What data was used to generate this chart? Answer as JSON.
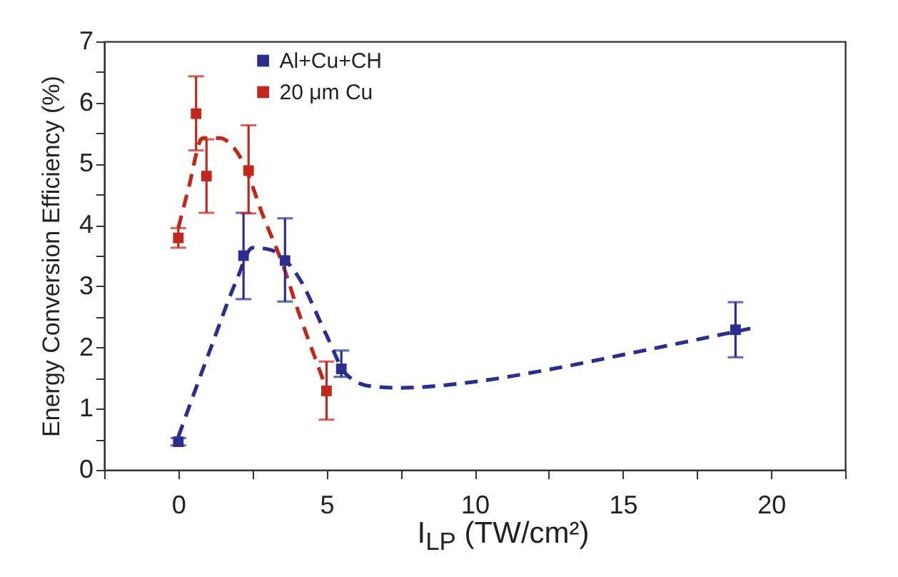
{
  "chart_data": {
    "type": "scatter",
    "xlabel": "I$_{LP}$ (TW/cm²)",
    "ylabel": "Energy Conversion Efficiency (%)",
    "xlim": [
      -2.5,
      22.5
    ],
    "xticks": [
      {
        "value": -2.5,
        "label": null
      },
      0,
      {
        "value": 2.5,
        "label": null
      },
      5,
      {
        "value": 7.5,
        "label": null
      },
      10,
      {
        "value": 12.5,
        "label": null
      },
      15,
      {
        "value": 17.5,
        "label": null
      },
      20,
      {
        "value": 22.5,
        "label": null
      }
    ],
    "ylim": [
      0,
      7
    ],
    "yticks": [
      0,
      {
        "value": 0.5,
        "label": null
      },
      1,
      {
        "value": 1.5,
        "label": null
      },
      2,
      {
        "value": 2.5,
        "label": null
      },
      3,
      {
        "value": 3.5,
        "label": null
      },
      4,
      {
        "value": 4.5,
        "label": null
      },
      5,
      {
        "value": 5.5,
        "label": null
      },
      6,
      {
        "value": 6.5,
        "label": null
      },
      7
    ],
    "grid": false,
    "legend": "top",
    "marker": "square",
    "series": [
      {
        "name": "Al+Cu+CH",
        "color": "#2b2e8f",
        "x": [
          0,
          2.2,
          3.6,
          5.5,
          18.8
        ],
        "values": [
          0.46,
          3.5,
          3.42,
          1.65,
          2.29
        ],
        "errors": [
          [
            0.4,
            0.52
          ],
          [
            2.79,
            4.2
          ],
          [
            2.75,
            4.11
          ],
          [
            1.52,
            1.95
          ],
          [
            1.84,
            2.74
          ]
        ]
      },
      {
        "name": "20 μm Cu",
        "color": "#c0281c",
        "x": [
          0,
          0.6,
          0.95,
          2.37,
          5.0
        ],
        "values": [
          3.79,
          5.82,
          4.8,
          4.89,
          1.29
        ],
        "errors": [
          [
            3.63,
            3.95
          ],
          [
            5.22,
            6.43
          ],
          [
            4.2,
            5.4
          ],
          [
            4.19,
            5.63
          ],
          [
            0.82,
            1.77
          ]
        ]
      },
      {
        "type": "line",
        "color": "#2b2e8f",
        "line_style": "dashed",
        "marker": "none",
        "x": [
          0,
          1.14,
          1.95,
          2.51,
          3.08,
          4.04,
          5.0,
          5.65,
          6.46,
          7.43,
          10.0,
          12.4,
          15.6,
          19.3
        ],
        "values": [
          0.54,
          2.05,
          3.08,
          3.63,
          3.6,
          3.16,
          2.2,
          1.57,
          1.37,
          1.34,
          1.44,
          1.63,
          1.94,
          2.31
        ]
      },
      {
        "type": "line",
        "color": "#c0281c",
        "line_style": "dashed",
        "marker": "none",
        "x": [
          0,
          0.34,
          0.82,
          1.38,
          2.1,
          2.9,
          3.55,
          4.04,
          4.69,
          4.93
        ],
        "values": [
          3.95,
          4.59,
          5.42,
          5.42,
          5.1,
          4.1,
          3.32,
          2.6,
          1.73,
          1.41
        ]
      }
    ]
  }
}
